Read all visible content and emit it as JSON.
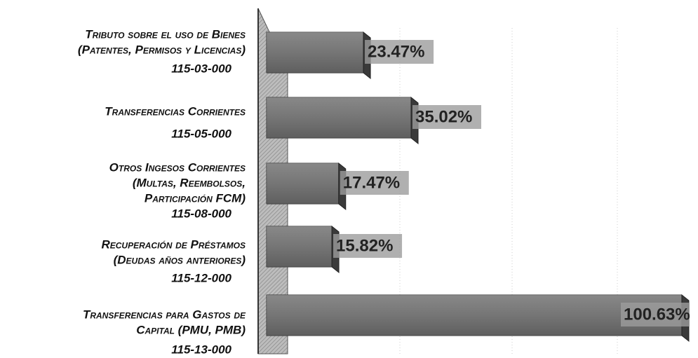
{
  "chart_data": {
    "type": "bar",
    "orientation": "horizontal",
    "categories": [
      [
        "Tributo sobre el uso de Bienes",
        "(Patentes, Permisos y Licencias)"
      ],
      [
        "Transferencias Corrientes"
      ],
      [
        "Otros Ingesos Corrientes",
        "(Multas, Reembolsos,",
        "Participación FCM)"
      ],
      [
        "Recuperación de Préstamos",
        "(Deudas años anteriores)"
      ],
      [
        "Transferencias para Gastos de",
        "Capital (PMU, PMB)"
      ]
    ],
    "codes": [
      "115-03-000",
      "115-05-000",
      "115-08-000",
      "115-12-000",
      "115-13-000"
    ],
    "values": [
      23.47,
      35.02,
      17.47,
      15.82,
      100.63
    ],
    "value_labels": [
      "23.47%",
      "35.02%",
      "17.47%",
      "15.82%",
      "100.63%"
    ],
    "color": "#6e6e6e",
    "xlim": [
      0,
      102
    ]
  }
}
